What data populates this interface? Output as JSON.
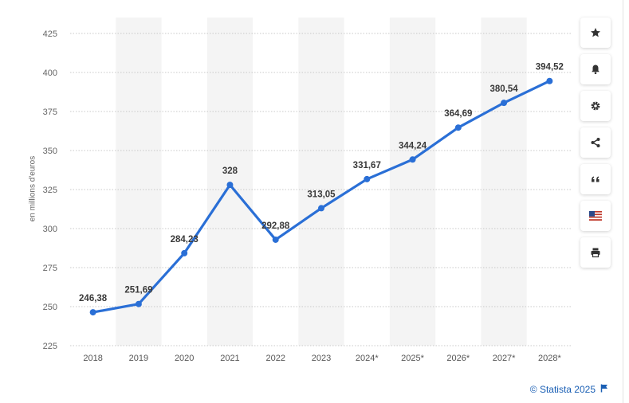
{
  "chart_data": {
    "type": "line",
    "categories": [
      "2018",
      "2019",
      "2020",
      "2021",
      "2022",
      "2023",
      "2024*",
      "2025*",
      "2026*",
      "2027*",
      "2028*"
    ],
    "values": [
      246.38,
      251.69,
      284.23,
      328,
      292.88,
      313.05,
      331.67,
      344.24,
      364.69,
      380.54,
      394.52
    ],
    "data_labels": [
      "246,38",
      "251,69",
      "284,23",
      "328",
      "292,88",
      "313,05",
      "331,67",
      "344,24",
      "364,69",
      "380,54",
      "394,52"
    ],
    "ylabel": "en millions d'euros",
    "xlabel": "",
    "ylim": [
      225,
      425
    ],
    "yticks": [
      225,
      250,
      275,
      300,
      325,
      350,
      375,
      400,
      425
    ],
    "grid": "horizontal dotted",
    "line_color": "#2a6fd6",
    "band_color": "#f4f4f4"
  },
  "toolbar": {
    "buttons": [
      {
        "name": "star-icon"
      },
      {
        "name": "bell-icon"
      },
      {
        "name": "gear-icon"
      },
      {
        "name": "share-icon"
      },
      {
        "name": "quote-icon"
      },
      {
        "name": "flag-icon"
      },
      {
        "name": "print-icon"
      }
    ]
  },
  "credit": {
    "text": "© Statista 2025",
    "color": "#1a5fb4"
  }
}
